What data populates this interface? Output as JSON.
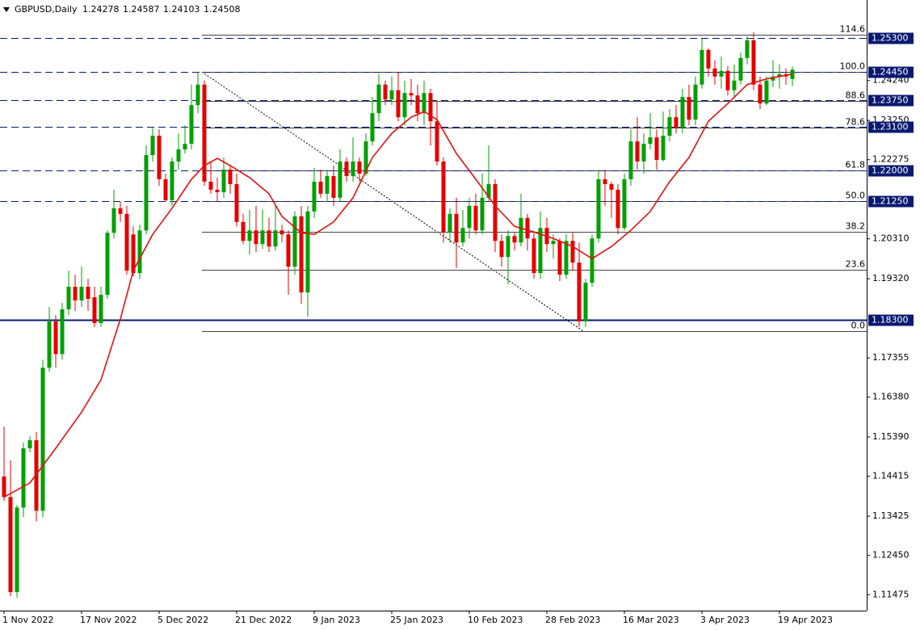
{
  "chart_data": {
    "type": "candlestick",
    "title": "GBPUSD,Daily",
    "categories": [
      "1 Nov 2022",
      null,
      null,
      null,
      null,
      null,
      null,
      null,
      null,
      null,
      null,
      null,
      "17 Nov 2022",
      null,
      null,
      null,
      null,
      null,
      null,
      null,
      null,
      null,
      null,
      null,
      "5 Dec 2022",
      null,
      null,
      null,
      null,
      null,
      null,
      null,
      null,
      null,
      null,
      null,
      "21 Dec 2022",
      null,
      null,
      null,
      null,
      null,
      null,
      null,
      null,
      null,
      null,
      null,
      "9 Jan 2023",
      null,
      null,
      null,
      null,
      null,
      null,
      null,
      null,
      null,
      null,
      null,
      "25 Jan 2023",
      null,
      null,
      null,
      null,
      null,
      null,
      null,
      null,
      null,
      null,
      null,
      "10 Feb 2023",
      null,
      null,
      null,
      null,
      null,
      null,
      null,
      null,
      null,
      null,
      null,
      "28 Feb 2023",
      null,
      null,
      null,
      null,
      null,
      null,
      null,
      null,
      null,
      null,
      null,
      "16 Mar 2023",
      null,
      null,
      null,
      null,
      null,
      null,
      null,
      null,
      null,
      null,
      null,
      "3 Apr 2023",
      null,
      null,
      null,
      null,
      null,
      null,
      null,
      null,
      null,
      null,
      null,
      "19 Apr 2023",
      null,
      null
    ],
    "ohlc": [
      [
        1.1441,
        1.1565,
        1.138,
        1.139
      ],
      [
        1.139,
        1.1481,
        1.1144,
        1.1154
      ],
      [
        1.1154,
        1.137,
        1.114,
        1.1364
      ],
      [
        1.1364,
        1.1525,
        1.134,
        1.1511
      ],
      [
        1.1511,
        1.1541,
        1.1501,
        1.1531
      ],
      [
        1.1531,
        1.1551,
        1.133,
        1.1356
      ],
      [
        1.1356,
        1.1731,
        1.134,
        1.1711
      ],
      [
        1.1711,
        1.1862,
        1.1701,
        1.1826
      ],
      [
        1.1826,
        1.1842,
        1.1711,
        1.1745
      ],
      [
        1.1745,
        1.1872,
        1.1731,
        1.1856
      ],
      [
        1.1856,
        1.1952,
        1.1842,
        1.1912
      ],
      [
        1.1912,
        1.1942,
        1.1852,
        1.1878
      ],
      [
        1.1878,
        1.1962,
        1.1862,
        1.1912
      ],
      [
        1.1912,
        1.1932,
        1.1852,
        1.1882
      ],
      [
        1.1886,
        1.1912,
        1.1812,
        1.1822
      ],
      [
        1.1822,
        1.1912,
        1.1812,
        1.1892
      ],
      [
        1.1892,
        1.2052,
        1.1882,
        1.2046
      ],
      [
        1.2046,
        1.2153,
        1.2032,
        1.2107
      ],
      [
        1.2107,
        1.2123,
        1.2073,
        1.2093
      ],
      [
        1.2093,
        1.2113,
        1.1942,
        1.1952
      ],
      [
        1.2042,
        1.2062,
        1.1938,
        1.1946
      ],
      [
        1.1946,
        1.2066,
        1.1932,
        1.2052
      ],
      [
        1.2052,
        1.2263,
        1.2042,
        1.2239
      ],
      [
        1.2239,
        1.2307,
        1.2223,
        1.2287
      ],
      [
        1.2287,
        1.2303,
        1.2163,
        1.2179
      ],
      [
        1.2179,
        1.2193,
        1.2123,
        1.2127
      ],
      [
        1.2127,
        1.2233,
        1.2113,
        1.2223
      ],
      [
        1.2223,
        1.2293,
        1.2203,
        1.2253
      ],
      [
        1.2253,
        1.2313,
        1.2243,
        1.2267
      ],
      [
        1.2267,
        1.2414,
        1.2253,
        1.2363
      ],
      [
        1.2363,
        1.2446,
        1.2343,
        1.2414
      ],
      [
        1.2414,
        1.2424,
        1.2163,
        1.2173
      ],
      [
        1.2173,
        1.2223,
        1.2143,
        1.2153
      ],
      [
        1.2153,
        1.2183,
        1.2123,
        1.2147
      ],
      [
        1.2147,
        1.2233,
        1.2133,
        1.2203
      ],
      [
        1.2203,
        1.2213,
        1.2143,
        1.2167
      ],
      [
        1.2167,
        1.2193,
        1.2062,
        1.2073
      ],
      [
        1.2073,
        1.2093,
        1.2018,
        1.2026
      ],
      [
        1.2026,
        1.2103,
        1.1992,
        1.2052
      ],
      [
        1.2052,
        1.2113,
        1.1998,
        1.2018
      ],
      [
        1.2018,
        1.2103,
        1.2006,
        1.2052
      ],
      [
        1.2052,
        1.2083,
        1.1998,
        1.2012
      ],
      [
        1.2012,
        1.2113,
        1.2002,
        1.2052
      ],
      [
        1.2052,
        1.2066,
        1.2022,
        1.2042
      ],
      [
        1.2042,
        1.2052,
        1.1892,
        1.1962
      ],
      [
        1.1962,
        1.2099,
        1.1942,
        1.2087
      ],
      [
        1.2087,
        1.2113,
        1.187,
        1.1898
      ],
      [
        1.1898,
        1.2113,
        1.1838,
        1.2099
      ],
      [
        1.2099,
        1.2207,
        1.2083,
        1.2173
      ],
      [
        1.2173,
        1.2203,
        1.2133,
        1.2143
      ],
      [
        1.2143,
        1.2203,
        1.2123,
        1.2187
      ],
      [
        1.2187,
        1.2213,
        1.2113,
        1.2133
      ],
      [
        1.2133,
        1.2253,
        1.2123,
        1.2223
      ],
      [
        1.2223,
        1.2233,
        1.2173,
        1.2187
      ],
      [
        1.2187,
        1.2283,
        1.2173,
        1.2223
      ],
      [
        1.2223,
        1.2233,
        1.2173,
        1.2193
      ],
      [
        1.2193,
        1.2293,
        1.2187,
        1.2273
      ],
      [
        1.2273,
        1.2383,
        1.2263,
        1.2343
      ],
      [
        1.2343,
        1.244,
        1.2323,
        1.2414
      ],
      [
        1.2414,
        1.2424,
        1.2363,
        1.2377
      ],
      [
        1.2377,
        1.2434,
        1.2363,
        1.24
      ],
      [
        1.24,
        1.2444,
        1.2323,
        1.2333
      ],
      [
        1.2333,
        1.2424,
        1.2313,
        1.2393
      ],
      [
        1.2393,
        1.2428,
        1.2363,
        1.2387
      ],
      [
        1.2387,
        1.2414,
        1.2323,
        1.2343
      ],
      [
        1.2343,
        1.2424,
        1.2313,
        1.2393
      ],
      [
        1.2393,
        1.2404,
        1.2263,
        1.2323
      ],
      [
        1.2323,
        1.2373,
        1.2213,
        1.2223
      ],
      [
        1.2223,
        1.2233,
        1.2022,
        1.2048
      ],
      [
        1.2048,
        1.2107,
        1.2022,
        1.2093
      ],
      [
        1.2093,
        1.2133,
        1.1958,
        1.2022
      ],
      [
        1.2022,
        1.2103,
        1.2012,
        1.2058
      ],
      [
        1.2058,
        1.2133,
        1.2032,
        1.2113
      ],
      [
        1.2113,
        1.2143,
        1.2042,
        1.2052
      ],
      [
        1.2052,
        1.2193,
        1.2042,
        1.2133
      ],
      [
        1.2133,
        1.2263,
        1.2123,
        1.2167
      ],
      [
        1.2167,
        1.2179,
        1.1998,
        1.2026
      ],
      [
        1.2026,
        1.2042,
        1.1962,
        1.1986
      ],
      [
        1.1986,
        1.2052,
        1.1918,
        1.2038
      ],
      [
        1.2038,
        1.2046,
        1.2002,
        1.2022
      ],
      [
        1.2022,
        1.2143,
        1.2012,
        1.2083
      ],
      [
        1.2083,
        1.2093,
        1.2002,
        1.2032
      ],
      [
        1.2032,
        1.2046,
        1.1932,
        1.1946
      ],
      [
        1.1946,
        1.2099,
        1.1932,
        1.2058
      ],
      [
        1.2058,
        1.2083,
        1.1998,
        1.2018
      ],
      [
        1.2018,
        1.2042,
        1.1982,
        1.2026
      ],
      [
        1.2026,
        1.2032,
        1.1926,
        1.1942
      ],
      [
        1.1942,
        1.2042,
        1.1932,
        1.2026
      ],
      [
        1.2026,
        1.2046,
        1.1952,
        1.1972
      ],
      [
        1.1972,
        1.2022,
        1.1812,
        1.1826
      ],
      [
        1.1826,
        1.1932,
        1.1812,
        1.1922
      ],
      [
        1.1922,
        1.2042,
        1.1912,
        1.2032
      ],
      [
        1.2032,
        1.2203,
        1.2022,
        1.2179
      ],
      [
        1.2179,
        1.2203,
        1.2113,
        1.2167
      ],
      [
        1.2167,
        1.2173,
        1.2083,
        1.2153
      ],
      [
        1.2153,
        1.2167,
        1.2042,
        1.2058
      ],
      [
        1.2058,
        1.2193,
        1.2052,
        1.2179
      ],
      [
        1.2179,
        1.2303,
        1.2163,
        1.2273
      ],
      [
        1.2273,
        1.2333,
        1.2203,
        1.2223
      ],
      [
        1.2223,
        1.2293,
        1.2193,
        1.2267
      ],
      [
        1.2267,
        1.2343,
        1.2253,
        1.2283
      ],
      [
        1.2283,
        1.2303,
        1.2203,
        1.2227
      ],
      [
        1.2227,
        1.2347,
        1.2223,
        1.2287
      ],
      [
        1.2287,
        1.2353,
        1.2273,
        1.2333
      ],
      [
        1.2333,
        1.2363,
        1.2293,
        1.2307
      ],
      [
        1.2307,
        1.2404,
        1.2293,
        1.2383
      ],
      [
        1.2383,
        1.2414,
        1.2313,
        1.2327
      ],
      [
        1.2327,
        1.2434,
        1.2313,
        1.2414
      ],
      [
        1.2414,
        1.2528,
        1.2404,
        1.25
      ],
      [
        1.25,
        1.2504,
        1.2434,
        1.2454
      ],
      [
        1.2454,
        1.2474,
        1.2414,
        1.2434
      ],
      [
        1.2434,
        1.2484,
        1.2404,
        1.2448
      ],
      [
        1.2448,
        1.246,
        1.2387,
        1.24
      ],
      [
        1.24,
        1.2464,
        1.2383,
        1.2424
      ],
      [
        1.2424,
        1.2494,
        1.2414,
        1.248
      ],
      [
        1.248,
        1.2534,
        1.2464,
        1.2524
      ],
      [
        1.2524,
        1.2544,
        1.24,
        1.2414
      ],
      [
        1.2414,
        1.2434,
        1.2353,
        1.2367
      ],
      [
        1.2367,
        1.2434,
        1.2363,
        1.2424
      ],
      [
        1.2424,
        1.2474,
        1.2408,
        1.2434
      ],
      [
        1.2434,
        1.2464,
        1.2404,
        1.244
      ],
      [
        1.244,
        1.2454,
        1.2414,
        1.2434
      ],
      [
        1.24278,
        1.24587,
        1.24103,
        1.24508
      ]
    ],
    "up_color": "#00a000",
    "down_color": "#e50000",
    "ma": {
      "color": "#e81010",
      "x": [
        0,
        4,
        8,
        12,
        15,
        18,
        20,
        23,
        26,
        29,
        31,
        33,
        35,
        38,
        41,
        43,
        46,
        48,
        51,
        54,
        57,
        60,
        63,
        65,
        67,
        70,
        73,
        76,
        79,
        82,
        85,
        88,
        91,
        94,
        97,
        100,
        103,
        106,
        109,
        112,
        115,
        118,
        120,
        122
      ],
      "values": [
        1.139,
        1.1425,
        1.1511,
        1.1601,
        1.1681,
        1.1832,
        1.1952,
        1.2042,
        1.2107,
        1.2179,
        1.2213,
        1.2231,
        1.2213,
        1.2183,
        1.2143,
        1.2087,
        1.2046,
        1.2042,
        1.2073,
        1.2133,
        1.2233,
        1.2293,
        1.2333,
        1.2347,
        1.2327,
        1.2243,
        1.2179,
        1.2113,
        1.2062,
        1.2048,
        1.2032,
        1.2012,
        1.1982,
        1.2012,
        1.2052,
        1.2099,
        1.2173,
        1.2233,
        1.2323,
        1.2367,
        1.2414,
        1.2428,
        1.2434,
        1.244
      ]
    },
    "levels": [
      {
        "value": 1.253,
        "label": "1.25300",
        "style": "dashed"
      },
      {
        "value": 1.2445,
        "label": "1.24450",
        "style": "dashed"
      },
      {
        "value": 1.2375,
        "label": "1.23750",
        "style": "dashed"
      },
      {
        "value": 1.231,
        "label": "1.23100",
        "style": "dashed"
      },
      {
        "value": 1.22,
        "label": "1.22000",
        "style": "dashed"
      },
      {
        "value": 1.2125,
        "label": "1.21250",
        "style": "dashed"
      },
      {
        "value": 1.183,
        "label": "1.18300",
        "style": "solid"
      }
    ],
    "fib": [
      {
        "label": "114.6",
        "value": 1.2538
      },
      {
        "label": "100.0",
        "value": 1.2446
      },
      {
        "label": "88.6",
        "value": 1.2373
      },
      {
        "label": "78.6",
        "value": 1.2308
      },
      {
        "label": "61.8",
        "value": 1.22
      },
      {
        "label": "50.0",
        "value": 1.2124
      },
      {
        "label": "38.2",
        "value": 1.2048
      },
      {
        "label": "23.6",
        "value": 1.1954
      },
      {
        "label": "0.0",
        "value": 1.1802
      }
    ],
    "ylim": [
      1.1108,
      1.2624
    ],
    "yticks": [
      {
        "value": 1.2424,
        "label": "1.24240"
      },
      {
        "value": 1.2325,
        "label": "1.23250"
      },
      1.22275,
      {
        "value": 1.2031,
        "label": "1.20310"
      },
      {
        "value": 1.1932,
        "label": "1.19320"
      },
      1.17355,
      {
        "value": 1.1638,
        "label": "1.16380"
      },
      {
        "value": 1.1539,
        "label": "1.15390"
      },
      1.14415,
      1.13425,
      {
        "value": 1.1245,
        "label": "1.12450"
      },
      1.11475
    ]
  }
}
